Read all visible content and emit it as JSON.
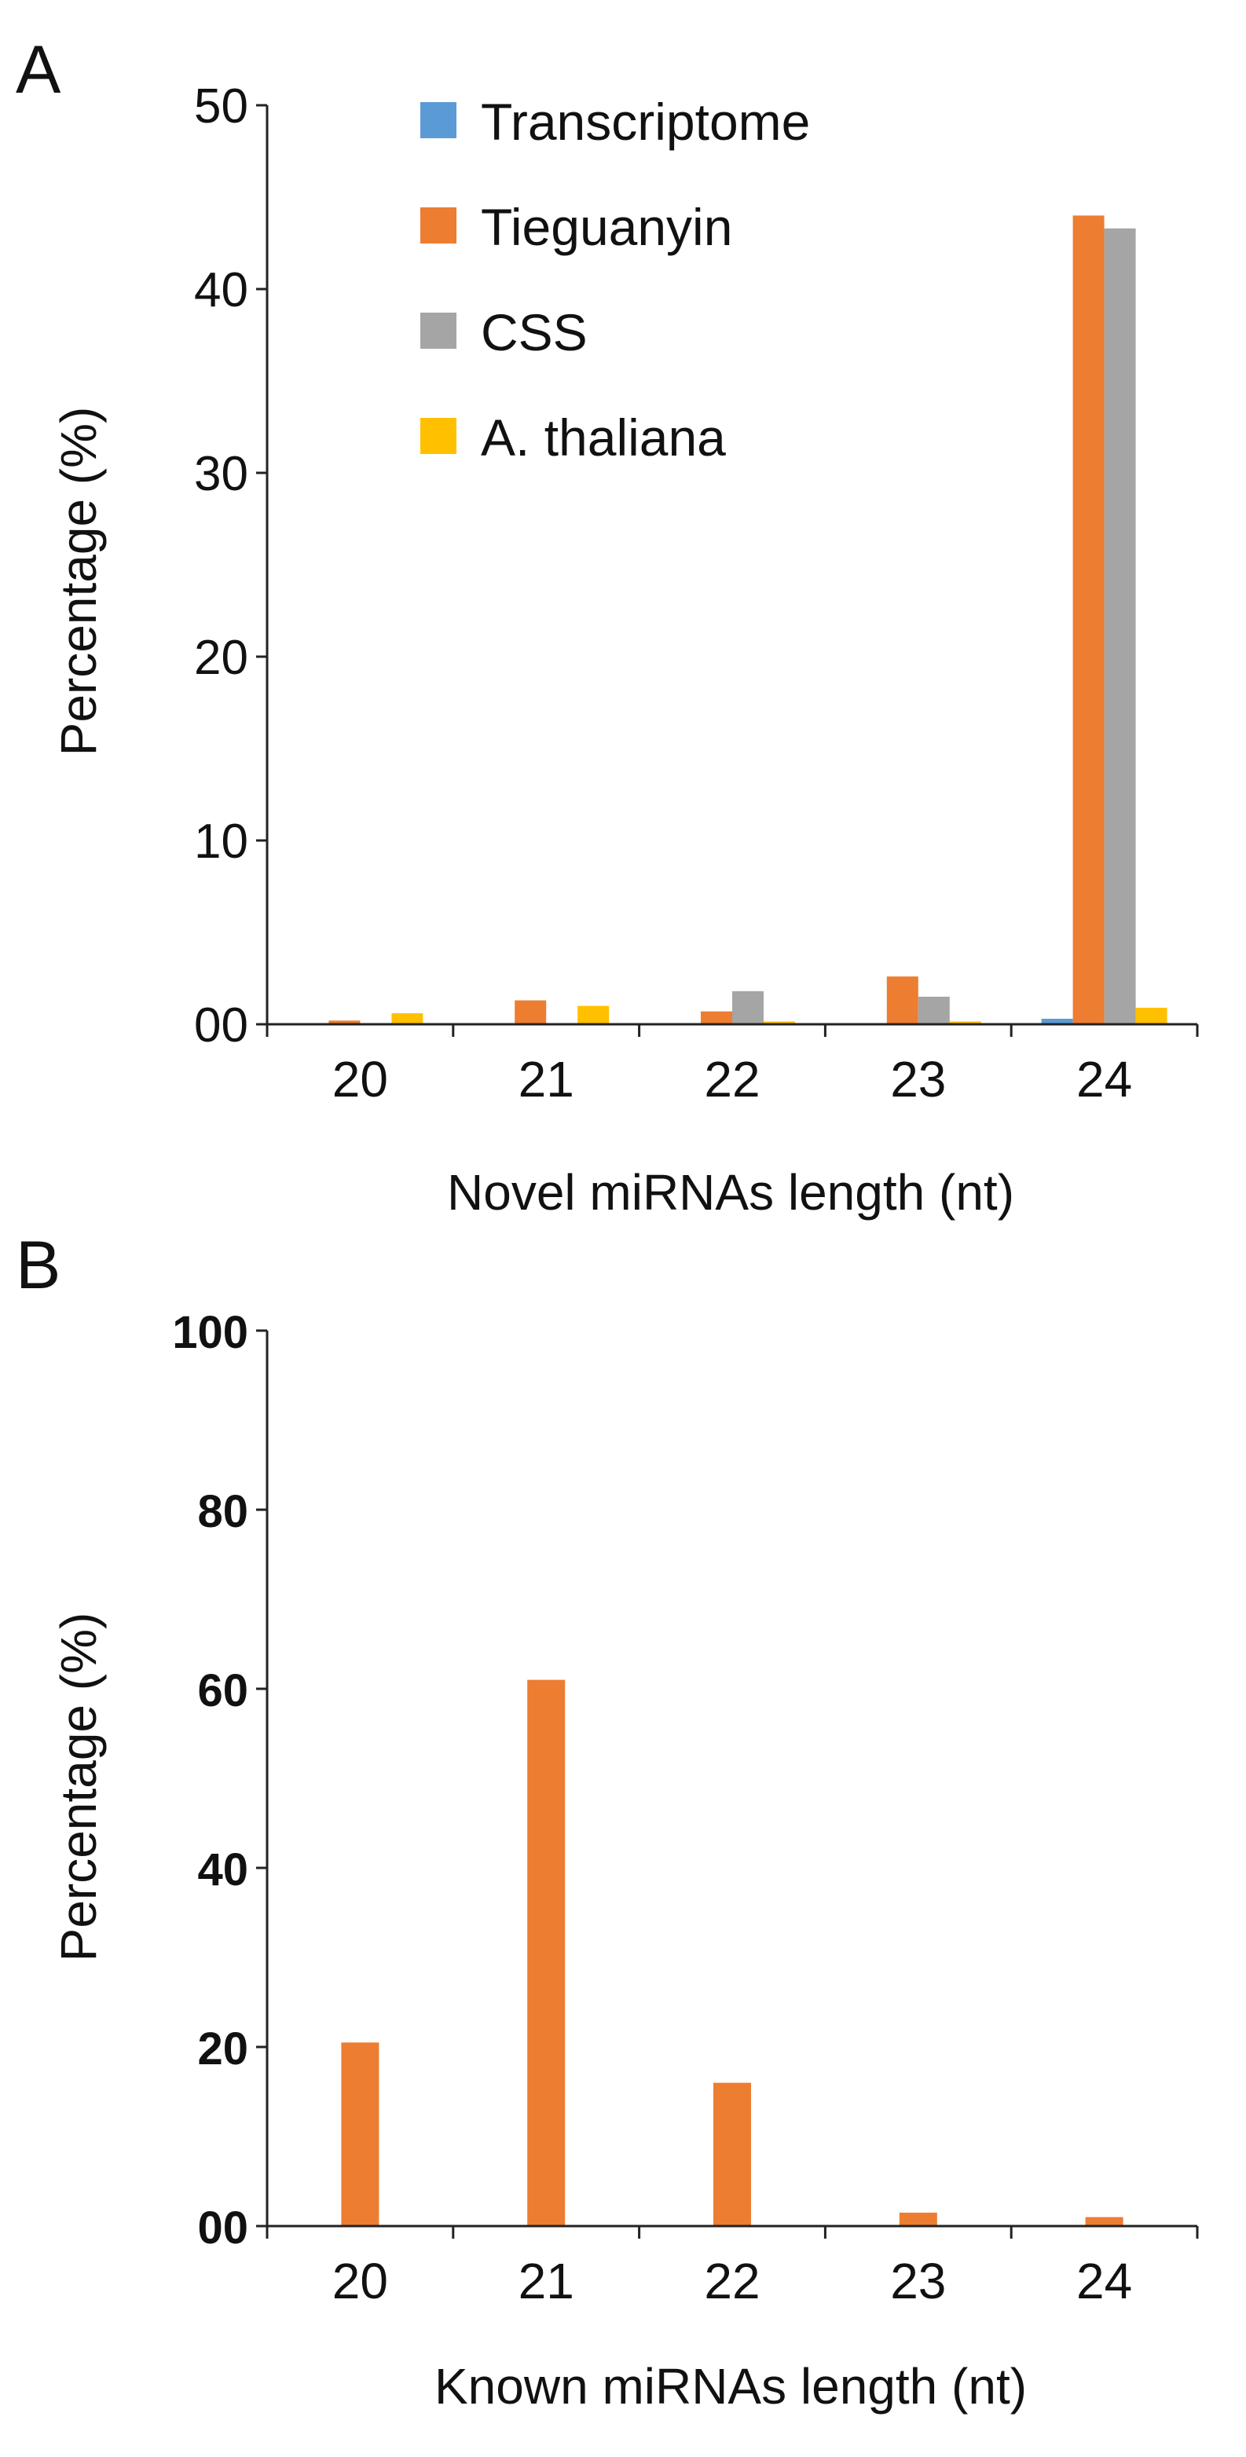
{
  "chart_data": [
    {
      "panel": "A",
      "type": "bar",
      "categories": [
        "20",
        "21",
        "22",
        "23",
        "24"
      ],
      "series": [
        {
          "name": "Transcriptome",
          "color": "#5b9bd5",
          "values": [
            0,
            0,
            0,
            0,
            0.3
          ]
        },
        {
          "name": "Tieguanyin",
          "color": "#ed7d31",
          "values": [
            0.2,
            1.3,
            0.7,
            2.6,
            44.0
          ]
        },
        {
          "name": "CSS",
          "color": "#a5a5a5",
          "values": [
            0,
            0,
            1.8,
            1.5,
            43.3
          ]
        },
        {
          "name": "A. thaliana",
          "color": "#ffc000",
          "values": [
            0.6,
            1.0,
            0.15,
            0.15,
            0.9
          ]
        }
      ],
      "y_ticks": [
        "00",
        "10",
        "20",
        "30",
        "40",
        "50"
      ],
      "xlabel": "Novel miRNAs length (nt)",
      "ylabel": "Percentage (%)",
      "ylim": [
        0,
        50
      ],
      "grid": false,
      "legend": "top-left"
    },
    {
      "panel": "B",
      "type": "bar",
      "categories": [
        "20",
        "21",
        "22",
        "23",
        "24"
      ],
      "series": [
        {
          "color": "#ed7d31",
          "values": [
            20.5,
            61.0,
            16.0,
            1.5,
            1.0
          ]
        }
      ],
      "y_ticks": [
        "00",
        "20",
        "40",
        "60",
        "80",
        "100"
      ],
      "xlabel": "Known miRNAs length (nt)",
      "ylabel": "Percentage (%)",
      "ylim": [
        0,
        100
      ],
      "grid": false,
      "legend": "none"
    }
  ]
}
